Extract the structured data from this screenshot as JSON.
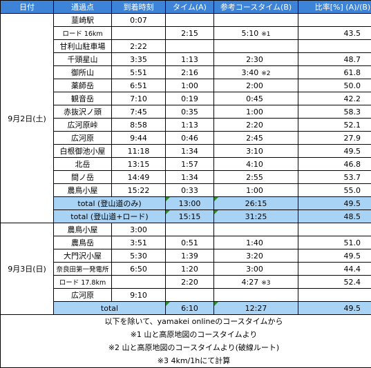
{
  "headers": [
    "日付",
    "通過点",
    "到着時刻",
    "タイム(A)",
    "参考コースタイム(B)",
    "比率[%] (A)/(B)"
  ],
  "day1": {
    "date": "9月2日(土)",
    "rows": [
      {
        "place": "韮崎駅",
        "arrive": "0:07",
        "time": "",
        "ref": "",
        "note": "",
        "ratio": ""
      },
      {
        "place": "ロード 16km",
        "arrive": "",
        "time": "2:15",
        "ref": "5:10",
        "note": "※1",
        "ratio": "43.5"
      },
      {
        "place": "甘利山駐車場",
        "arrive": "2:22",
        "time": "",
        "ref": "",
        "note": "",
        "ratio": ""
      },
      {
        "place": "千頭星山",
        "arrive": "3:35",
        "time": "1:13",
        "ref": "2:30",
        "note": "",
        "ratio": "48.7"
      },
      {
        "place": "御所山",
        "arrive": "5:51",
        "time": "2:16",
        "ref": "3:40",
        "note": "※2",
        "ratio": "61.8"
      },
      {
        "place": "薬師岳",
        "arrive": "6:51",
        "time": "1:00",
        "ref": "2:00",
        "note": "",
        "ratio": "50.0"
      },
      {
        "place": "観音岳",
        "arrive": "7:10",
        "time": "0:19",
        "ref": "0:45",
        "note": "",
        "ratio": "42.2"
      },
      {
        "place": "赤抜沢ノ頭",
        "arrive": "7:45",
        "time": "0:35",
        "ref": "1:00",
        "note": "",
        "ratio": "58.3"
      },
      {
        "place": "広河原峠",
        "arrive": "8:58",
        "time": "1:13",
        "ref": "2:20",
        "note": "",
        "ratio": "52.1"
      },
      {
        "place": "広河原",
        "arrive": "9:44",
        "time": "0:46",
        "ref": "2:45",
        "note": "",
        "ratio": "27.9"
      },
      {
        "place": "白根御池小屋",
        "arrive": "11:18",
        "time": "1:34",
        "ref": "3:10",
        "note": "",
        "ratio": "49.5"
      },
      {
        "place": "北岳",
        "arrive": "13:15",
        "time": "1:57",
        "ref": "4:10",
        "note": "",
        "ratio": "46.8"
      },
      {
        "place": "間ノ岳",
        "arrive": "14:49",
        "time": "1:34",
        "ref": "2:55",
        "note": "",
        "ratio": "53.7"
      },
      {
        "place": "農鳥小屋",
        "arrive": "15:22",
        "time": "0:33",
        "ref": "1:00",
        "note": "",
        "ratio": "55.0"
      }
    ],
    "total1": {
      "label": "total (登山道のみ)",
      "time": "13:00",
      "ref": "26:15",
      "ratio": "49.5"
    },
    "total2": {
      "label": "total (登山道+ロード)",
      "time": "15:15",
      "ref": "31:25",
      "ratio": "48.5"
    }
  },
  "day2": {
    "date": "9月3日(日)",
    "rows": [
      {
        "place": "農鳥小屋",
        "arrive": "3:00",
        "time": "",
        "ref": "",
        "note": "",
        "ratio": ""
      },
      {
        "place": "農鳥岳",
        "arrive": "3:51",
        "time": "0:51",
        "ref": "1:40",
        "note": "",
        "ratio": "51.0"
      },
      {
        "place": "大門沢小屋",
        "arrive": "5:30",
        "time": "1:39",
        "ref": "3:20",
        "note": "",
        "ratio": "49.5"
      },
      {
        "place": "奈良田第一発電所",
        "arrive": "6:50",
        "time": "1:20",
        "ref": "3:00",
        "note": "",
        "ratio": "44.4"
      },
      {
        "place": "ロード 17.8km",
        "arrive": "",
        "time": "2:20",
        "ref": "4:27",
        "note": "※3",
        "ratio": "52.4"
      },
      {
        "place": "広河原",
        "arrive": "9:10",
        "time": "",
        "ref": "",
        "note": "",
        "ratio": ""
      }
    ],
    "total": {
      "label": "total",
      "time": "6:10",
      "ref": "12:27",
      "ratio": "49.5"
    }
  },
  "notes": [
    "以下を除いて、yamakei onlineのコースタイムから",
    "※1 山と高原地図のコースタイムより",
    "※2 山と高原地図のコースタイムより(破線ルート)",
    "※3 4km/1hにて計算"
  ]
}
